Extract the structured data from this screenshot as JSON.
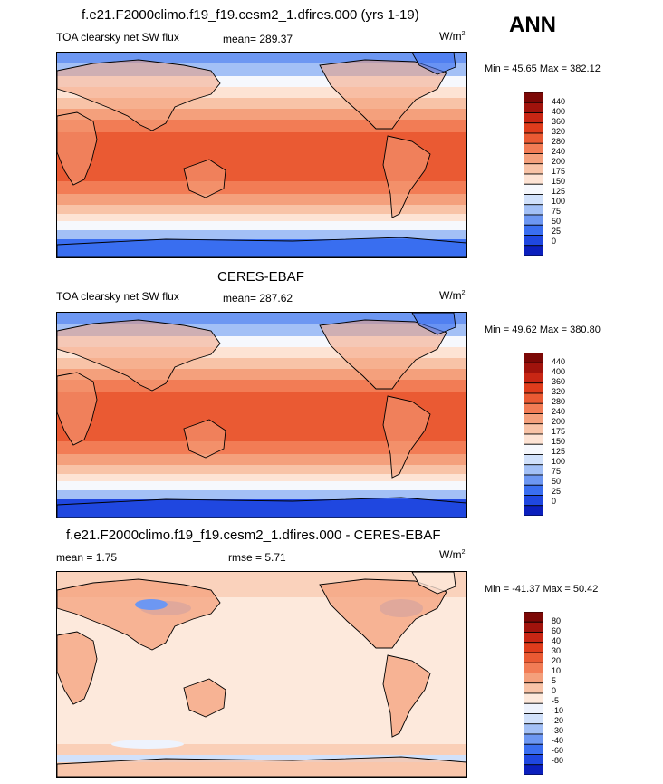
{
  "season": "ANN",
  "colors": {
    "abs_scale": [
      "#0a0a8c",
      "#0b1fbd",
      "#1f47e0",
      "#3a6ef0",
      "#6d97f2",
      "#a3c0f6",
      "#d1e1fb",
      "#f6f8fd",
      "#fde3d4",
      "#f8c3a7",
      "#f4a07c",
      "#f27c55",
      "#ea5a33",
      "#df3c1c",
      "#c82614",
      "#a0130c",
      "#7c0806"
    ],
    "diff_scale": [
      "#0a0a8c",
      "#0b1fbd",
      "#1f47e0",
      "#3a6ef0",
      "#6d97f2",
      "#a3c0f6",
      "#d1e1fb",
      "#eef3fd",
      "#fde9dc",
      "#f8c3a7",
      "#f4a07c",
      "#f27c55",
      "#ea5a33",
      "#df3c1c",
      "#c82614",
      "#a0130c",
      "#7c0806"
    ]
  },
  "panels": [
    {
      "id": "model",
      "title": "f.e21.F2000climo.f19_f19.cesm2_1.dfires.000 (yrs 1-19)",
      "variable": "TOA clearsky net SW flux",
      "stat": "mean= 289.37",
      "units": "W/m",
      "units_sup": "2",
      "minmax": "Min =  45.65 Max = 382.12",
      "colorbar_labels": [
        "440",
        "400",
        "360",
        "320",
        "280",
        "240",
        "200",
        "175",
        "150",
        "125",
        "100",
        "75",
        "50",
        "25",
        "0"
      ]
    },
    {
      "id": "obs",
      "title": "CERES-EBAF",
      "variable": "TOA clearsky net SW flux",
      "stat": "mean= 287.62",
      "units": "W/m",
      "units_sup": "2",
      "minmax": "Min =  49.62 Max = 380.80",
      "colorbar_labels": [
        "440",
        "400",
        "360",
        "320",
        "280",
        "240",
        "200",
        "175",
        "150",
        "125",
        "100",
        "75",
        "50",
        "25",
        "0"
      ]
    },
    {
      "id": "diff",
      "title": "f.e21.F2000climo.f19_f19.cesm2_1.dfires.000 - CERES-EBAF",
      "stat_left": "mean =   1.75",
      "stat_mid": "rmse =   5.71",
      "units": "W/m",
      "units_sup": "2",
      "minmax": "Min = -41.37 Max =  50.42",
      "colorbar_labels": [
        "80",
        "60",
        "40",
        "30",
        "20",
        "10",
        "5",
        "0",
        "-5",
        "-10",
        "-20",
        "-30",
        "-40",
        "-60",
        "-80"
      ]
    }
  ]
}
